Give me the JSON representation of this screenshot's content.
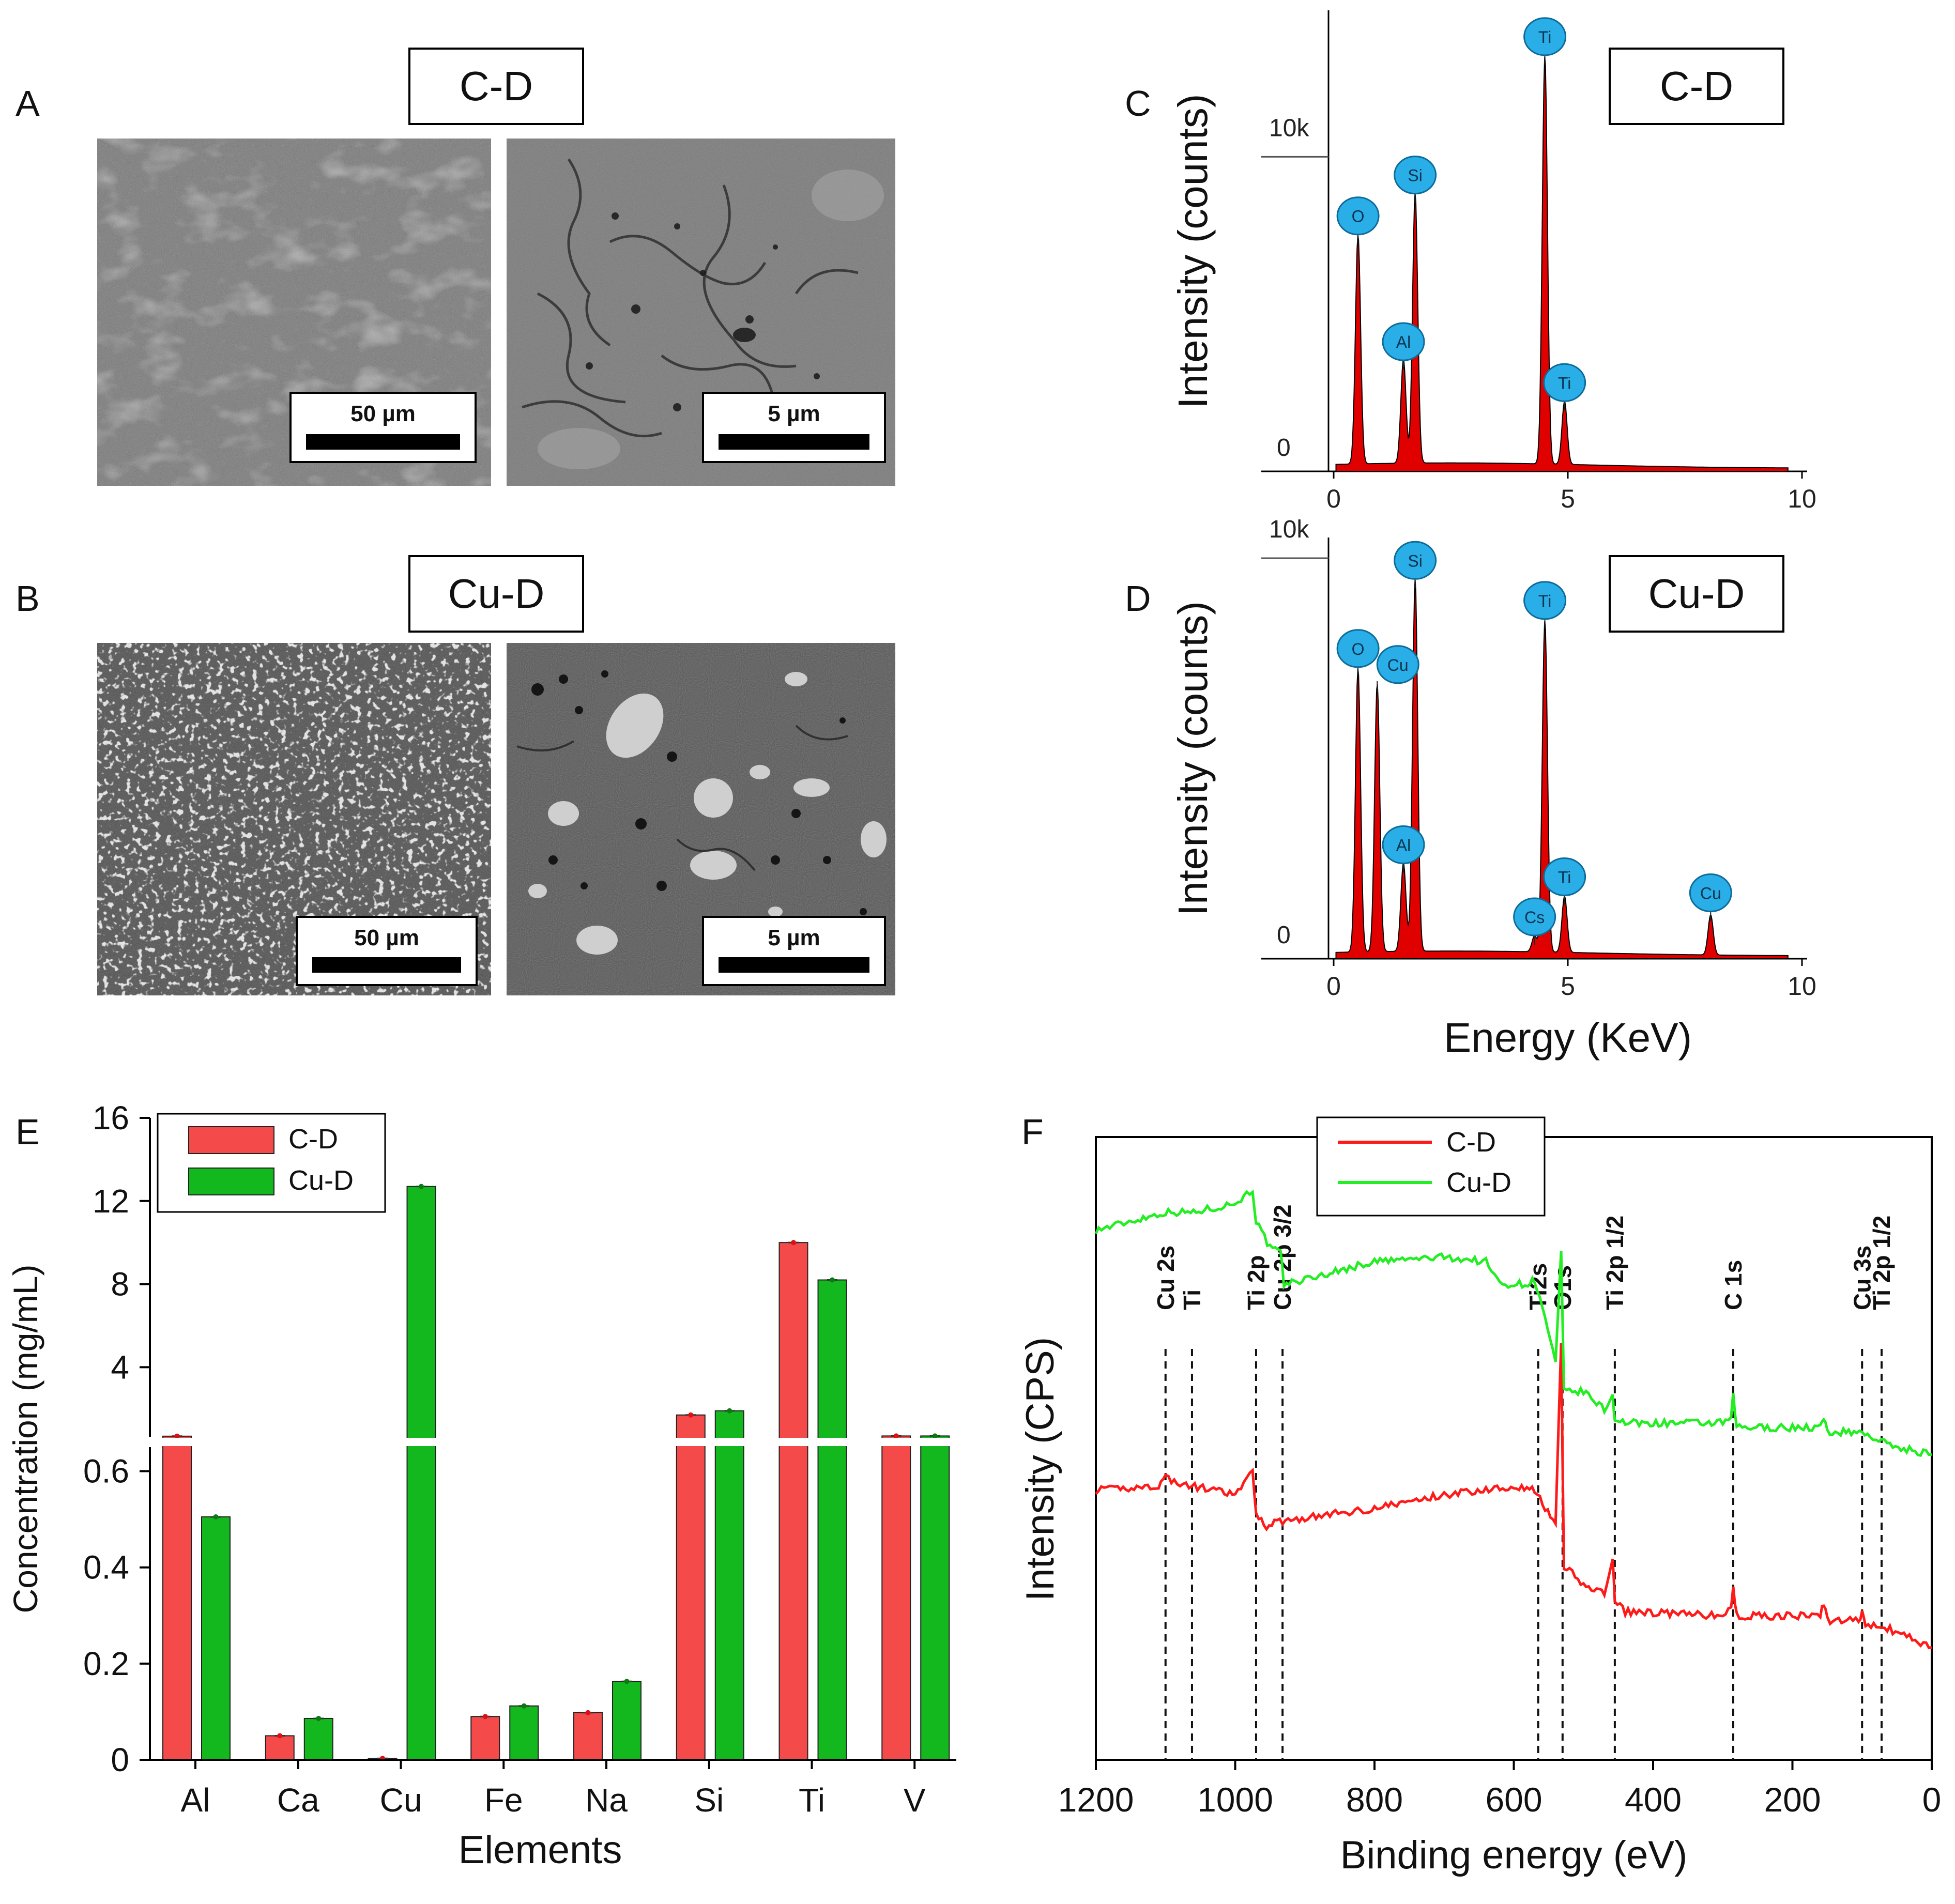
{
  "panels": {
    "A": {
      "letter": "A",
      "sample": "C-D",
      "scale_low": "50 µm",
      "scale_high": "5 µm"
    },
    "B": {
      "letter": "B",
      "sample": "Cu-D",
      "scale_low": "50 µm",
      "scale_high": "5 µm"
    },
    "C": {
      "letter": "C",
      "sample": "C-D"
    },
    "D": {
      "letter": "D",
      "sample": "Cu-D"
    },
    "E": {
      "letter": "E"
    },
    "F": {
      "letter": "F"
    }
  },
  "colors": {
    "cd": "#f44a4a",
    "cud": "#12b81e",
    "edx_fill": "#e00000",
    "edx_marker": "#29aee8",
    "xps_cd": "#ff1a1a",
    "xps_cud": "#22ee22"
  },
  "chart_data": [
    {
      "id": "C",
      "type": "line",
      "title": "C-D",
      "xlabel": "",
      "ylabel": "Intensity (counts)",
      "xlim": [
        0,
        10
      ],
      "ylim": [
        0,
        14000
      ],
      "x_ticks": [
        "0",
        "5",
        "10"
      ],
      "y_ticks": [
        "0",
        "10k"
      ],
      "peaks": [
        {
          "element": "O",
          "energy": 0.52,
          "counts": 7300
        },
        {
          "element": "Al",
          "energy": 1.49,
          "counts": 3300
        },
        {
          "element": "Si",
          "energy": 1.74,
          "counts": 8600
        },
        {
          "element": "Ti",
          "energy": 4.51,
          "counts": 13000
        },
        {
          "element": "Ti",
          "energy": 4.93,
          "counts": 2000
        }
      ]
    },
    {
      "id": "D",
      "type": "line",
      "title": "Cu-D",
      "xlabel": "Energy (KeV)",
      "ylabel": "Intensity (counts)",
      "xlim": [
        0,
        10
      ],
      "ylim": [
        0,
        10000
      ],
      "x_ticks": [
        "0",
        "5",
        "10"
      ],
      "y_ticks": [
        "0",
        "10k"
      ],
      "peaks": [
        {
          "element": "O",
          "energy": 0.52,
          "counts": 7100
        },
        {
          "element": "Cu",
          "energy": 0.93,
          "counts": 6700
        },
        {
          "element": "Al",
          "energy": 1.49,
          "counts": 2200
        },
        {
          "element": "Si",
          "energy": 1.74,
          "counts": 9300
        },
        {
          "element": "Cs",
          "energy": 4.29,
          "counts": 400
        },
        {
          "element": "Ti",
          "energy": 4.51,
          "counts": 8300
        },
        {
          "element": "Ti",
          "energy": 4.93,
          "counts": 1400
        },
        {
          "element": "Cu",
          "energy": 8.05,
          "counts": 1000
        }
      ]
    },
    {
      "id": "E",
      "type": "bar",
      "xlabel": "Elements",
      "ylabel": "Concentration (mg/mL)",
      "categories": [
        "Al",
        "Ca",
        "Cu",
        "Fe",
        "Na",
        "Si",
        "Ti",
        "V"
      ],
      "series": [
        {
          "name": "C-D",
          "values": [
            0.68,
            0.05,
            0.003,
            0.09,
            0.098,
            1.7,
            10.0,
            0.69
          ]
        },
        {
          "name": "Cu-D",
          "values": [
            0.505,
            0.086,
            12.7,
            0.112,
            0.163,
            1.9,
            8.2,
            0.69
          ]
        }
      ],
      "axis_break": {
        "lower": [
          0,
          0.65
        ],
        "upper": [
          0.65,
          16
        ]
      },
      "y_ticks_lower": [
        "0",
        "0.2",
        "0.4",
        "0.6"
      ],
      "y_ticks_upper": [
        "4",
        "8",
        "12",
        "16"
      ],
      "legend": "top-left"
    },
    {
      "id": "F",
      "type": "line",
      "xlabel": "Binding energy (eV)",
      "ylabel": "Intensity (CPS)",
      "xlim": [
        1200,
        0
      ],
      "x_ticks": [
        "1200",
        "1000",
        "800",
        "600",
        "400",
        "200",
        "0"
      ],
      "legend_entries": [
        "C-D",
        "Cu-D"
      ],
      "legend": "top-left",
      "annotations": [
        {
          "label": "Cu 2s",
          "energy": 1100
        },
        {
          "label": "Ti",
          "energy": 1062
        },
        {
          "label": "Ti 2p",
          "energy": 970
        },
        {
          "label": "Cu 2p 3/2",
          "energy": 932
        },
        {
          "label": "Ti2s",
          "energy": 565
        },
        {
          "label": "O1s",
          "energy": 530
        },
        {
          "label": "Ti 2p 1/2",
          "energy": 455
        },
        {
          "label": "C 1s",
          "energy": 285
        },
        {
          "label": "Cu 3s",
          "energy": 100
        },
        {
          "label": "Ti 2p 1/2",
          "energy": 72
        }
      ],
      "series": [
        {
          "name": "C-D",
          "x": [
            1200,
            1110,
            1100,
            1075,
            1062,
            1000,
            975,
            970,
            955,
            940,
            800,
            700,
            600,
            570,
            555,
            540,
            532,
            528,
            520,
            500,
            470,
            458,
            455,
            440,
            300,
            288,
            285,
            280,
            200,
            160,
            155,
            150,
            105,
            100,
            95,
            60,
            0
          ],
          "y": [
            52,
            53,
            55,
            53,
            53,
            51,
            56,
            47,
            44,
            45,
            48,
            51,
            53,
            52,
            48,
            44,
            85,
            34,
            34,
            31,
            29,
            37,
            27,
            25,
            24,
            26,
            30,
            24,
            24,
            24,
            27,
            23,
            23,
            25,
            22,
            21,
            17
          ]
        },
        {
          "name": "Cu-D",
          "x": [
            1200,
            1100,
            1060,
            1000,
            975,
            970,
            950,
            935,
            930,
            900,
            800,
            700,
            640,
            620,
            580,
            570,
            548,
            540,
            532,
            528,
            500,
            470,
            458,
            455,
            440,
            300,
            288,
            285,
            280,
            200,
            160,
            155,
            150,
            100,
            60,
            0
          ],
          "y": [
            110,
            114,
            114,
            116,
            119,
            112,
            106,
            105,
            98,
            99,
            103,
            104,
            103,
            98,
            98,
            99,
            86,
            80,
            105,
            74,
            74,
            70,
            73,
            68,
            67,
            67,
            68,
            73,
            66,
            66,
            66,
            68,
            65,
            65,
            62,
            60
          ]
        }
      ]
    }
  ]
}
